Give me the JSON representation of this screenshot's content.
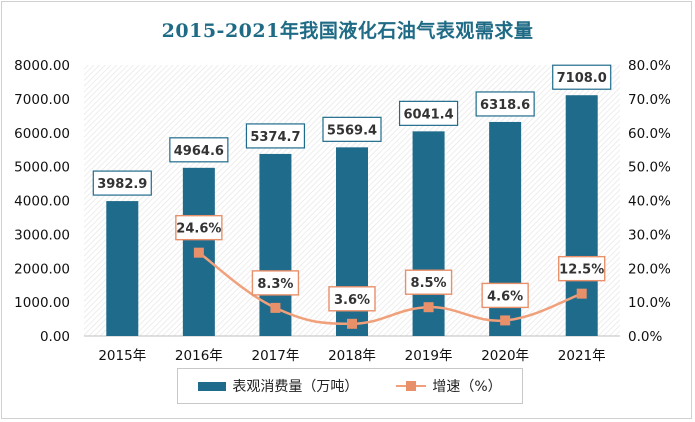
{
  "chart_data": {
    "type": "bar",
    "title": "2015-2021年我国液化石油气表观需求量",
    "categories": [
      "2015年",
      "2016年",
      "2017年",
      "2018年",
      "2019年",
      "2020年",
      "2021年"
    ],
    "series": [
      {
        "name": "表观消费量（万吨）",
        "type": "bar",
        "axis": "left",
        "values": [
          3982.9,
          4964.6,
          5374.7,
          5569.4,
          6041.4,
          6318.6,
          7108.0
        ],
        "labels": [
          "3982.9",
          "4964.6",
          "5374.7",
          "5569.4",
          "6041.4",
          "6318.6",
          "7108.0"
        ],
        "color": "#1f6b8c"
      },
      {
        "name": "增速（%）",
        "type": "line",
        "axis": "right",
        "values": [
          null,
          24.6,
          8.3,
          3.6,
          8.5,
          4.6,
          12.5
        ],
        "labels": [
          "",
          "24.6%",
          "8.3%",
          "3.6%",
          "8.5%",
          "4.6%",
          "12.5%"
        ],
        "color": "#f0a07a"
      }
    ],
    "y_left": {
      "ylim": [
        0,
        8000
      ],
      "ticks": [
        "0.00",
        "1000.00",
        "2000.00",
        "3000.00",
        "4000.00",
        "5000.00",
        "6000.00",
        "7000.00",
        "8000.00"
      ]
    },
    "y_right": {
      "ylim": [
        0,
        80
      ],
      "ticks": [
        "0.0%",
        "10.0%",
        "20.0%",
        "30.0%",
        "40.0%",
        "50.0%",
        "60.0%",
        "70.0%",
        "80.0%"
      ]
    },
    "grid": false,
    "legend": "bottom"
  }
}
